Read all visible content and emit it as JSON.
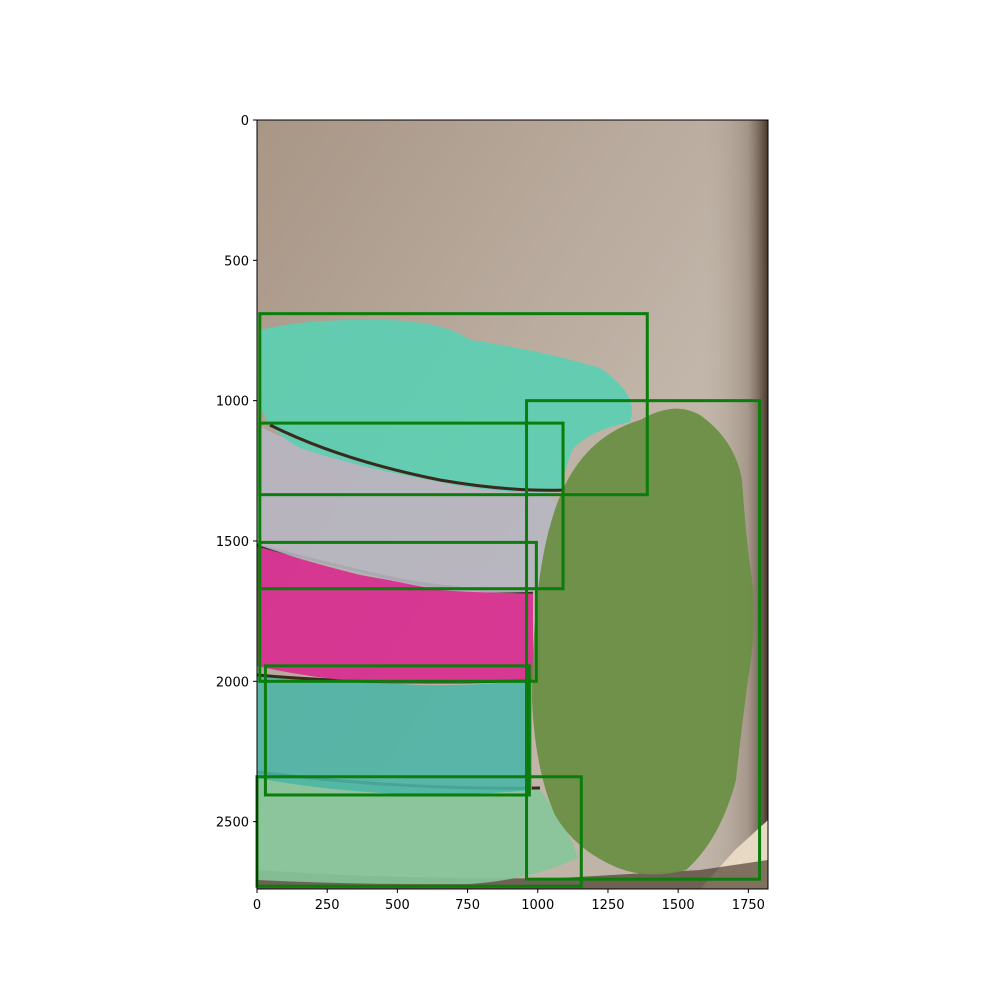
{
  "figure": {
    "image_extent": {
      "x_max": 1820,
      "y_max": 2740
    },
    "x_ticks": [
      0,
      250,
      500,
      750,
      1000,
      1250,
      1500,
      1750
    ],
    "y_ticks": [
      0,
      500,
      1000,
      1500,
      2000,
      2500
    ],
    "box_color": "#0a7d0a",
    "boxes": [
      {
        "id": "box-top-teal",
        "x0": 10,
        "y0": 690,
        "x1": 1390,
        "y1": 1335
      },
      {
        "id": "box-gray",
        "x0": 10,
        "y0": 1080,
        "x1": 1090,
        "y1": 1670
      },
      {
        "id": "box-magenta",
        "x0": 10,
        "y0": 1505,
        "x1": 995,
        "y1": 2000
      },
      {
        "id": "box-lower-teal",
        "x0": 30,
        "y0": 1945,
        "x1": 970,
        "y1": 2405
      },
      {
        "id": "box-bottom",
        "x0": 0,
        "y0": 2340,
        "x1": 1155,
        "y1": 2730
      },
      {
        "id": "box-green",
        "x0": 960,
        "y0": 1000,
        "x1": 1790,
        "y1": 2705
      }
    ],
    "colors": {
      "background_top": "#a99a90",
      "background_mid": "#bdb0a4",
      "teal": "#5ccfb2",
      "gray": "#b7b6c1",
      "magenta": "#d9278f",
      "lower_teal": "#4ab5a6",
      "bottom_green": "#86c79a",
      "green_object": "#6a8f45",
      "shadow": "#3a2a1e"
    }
  }
}
